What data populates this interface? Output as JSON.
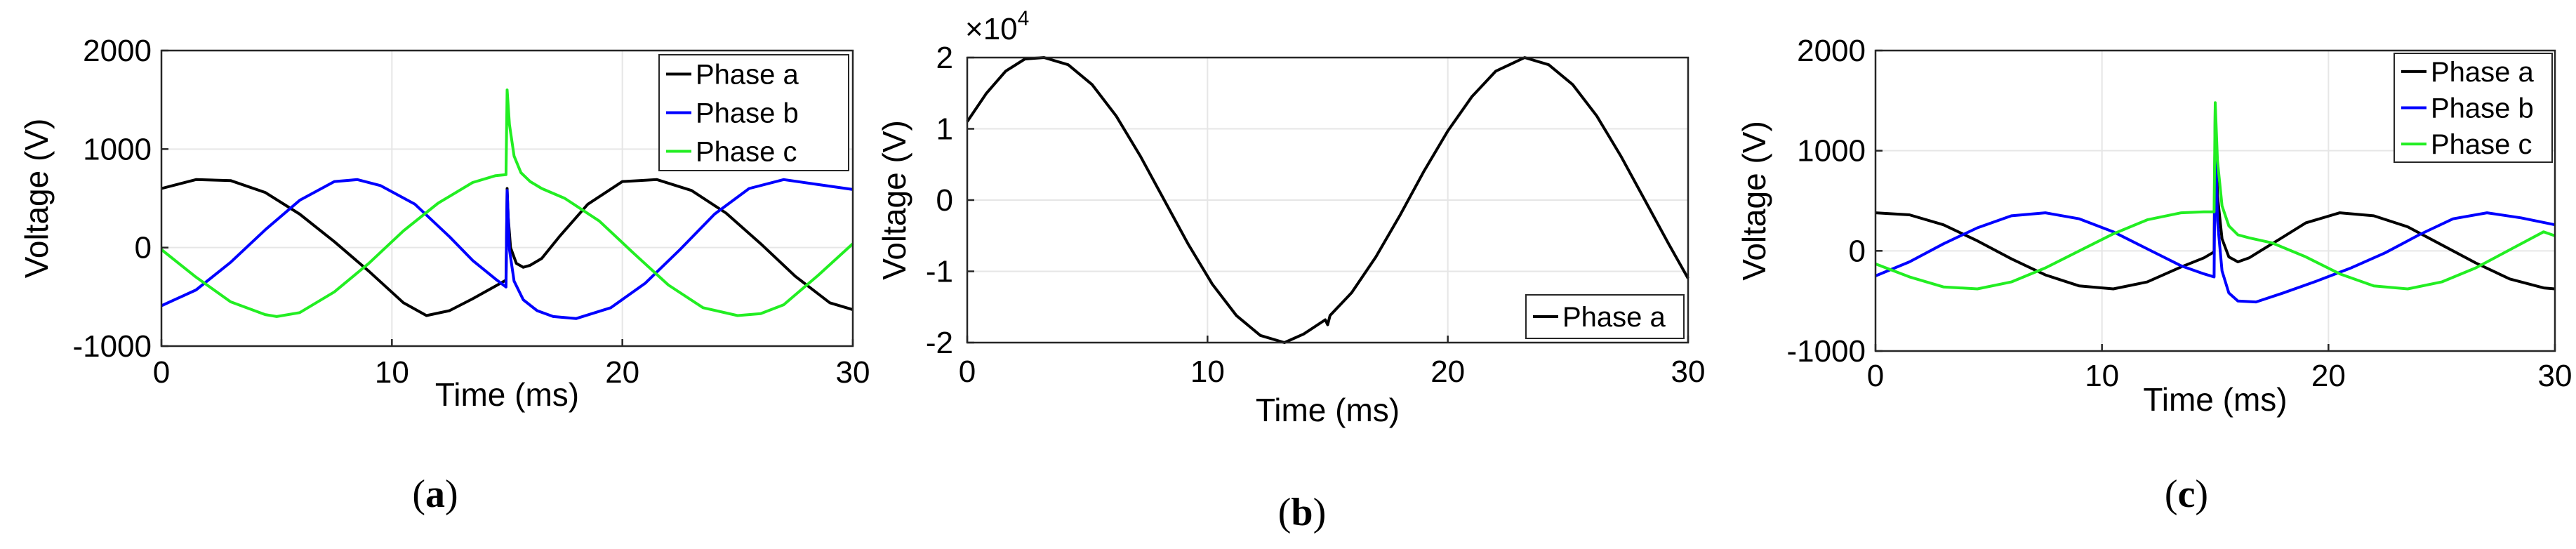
{
  "chart_data": [
    {
      "type": "line",
      "caption": {
        "open": "(",
        "letter": "a",
        "close": ")"
      },
      "xlabel": "Time (ms)",
      "ylabel": "Voltage (V)",
      "xlim": [
        0,
        30
      ],
      "ylim": [
        -1000,
        2000
      ],
      "xticks": [
        "0",
        "10",
        "20",
        "30"
      ],
      "yticks": [
        "-1000",
        "0",
        "1000",
        "2000"
      ],
      "grid": true,
      "legend_position": "top-right",
      "series": [
        {
          "name": "Phase a",
          "color": "#000000",
          "x": [
            0,
            1.5,
            3,
            4.5,
            6,
            7.5,
            9,
            10.5,
            11.5,
            12.5,
            13.5,
            14.5,
            14.95,
            15.0,
            15.05,
            15.15,
            15.4,
            15.7,
            16.0,
            16.5,
            17.3,
            18.5,
            20,
            21.5,
            23,
            24.5,
            26,
            27.5,
            29,
            30
          ],
          "y": [
            600,
            690,
            680,
            560,
            340,
            60,
            -240,
            -560,
            -690,
            -640,
            -520,
            -390,
            -330,
            600,
            300,
            0,
            -160,
            -200,
            -180,
            -110,
            120,
            440,
            670,
            690,
            580,
            350,
            40,
            -290,
            -560,
            -630
          ]
        },
        {
          "name": "Phase b",
          "color": "#0000ff",
          "x": [
            0,
            1.5,
            3,
            4.5,
            6,
            7.5,
            8.5,
            9.5,
            11,
            12.5,
            13.5,
            14.5,
            14.95,
            15.0,
            15.1,
            15.3,
            15.7,
            16.3,
            17.0,
            18.0,
            19.5,
            21,
            22.5,
            24,
            25.5,
            27,
            28.5,
            30
          ],
          "y": [
            -590,
            -430,
            -150,
            180,
            480,
            670,
            690,
            630,
            440,
            110,
            -130,
            -320,
            -400,
            580,
            -20,
            -340,
            -530,
            -640,
            -700,
            -720,
            -610,
            -360,
            -20,
            340,
            600,
            690,
            640,
            590
          ]
        },
        {
          "name": "Phase c",
          "color": "#22ee22",
          "x": [
            0,
            1.5,
            3,
            4.5,
            5,
            6,
            7.5,
            9,
            10.5,
            12,
            13.5,
            14.5,
            14.95,
            15.0,
            15.1,
            15.3,
            15.6,
            16.0,
            16.5,
            17.5,
            19,
            20.5,
            22,
            23.5,
            25,
            26,
            27,
            28.5,
            30
          ],
          "y": [
            -20,
            -300,
            -550,
            -680,
            -700,
            -660,
            -450,
            -160,
            170,
            450,
            660,
            730,
            740,
            1600,
            1250,
            930,
            760,
            670,
            600,
            500,
            270,
            -60,
            -380,
            -610,
            -690,
            -670,
            -580,
            -280,
            40
          ]
        }
      ]
    },
    {
      "type": "line",
      "caption": {
        "open": "(",
        "letter": "b",
        "close": ")"
      },
      "xlabel": "Time (ms)",
      "ylabel": "Voltage (V)",
      "ylabel_multiplier": {
        "base": "×10",
        "exponent": "4"
      },
      "xlim": [
        0,
        30
      ],
      "ylim": [
        -2,
        2
      ],
      "xticks": [
        "0",
        "10",
        "20",
        "30"
      ],
      "yticks": [
        "-2",
        "-1",
        "0",
        "1",
        "2"
      ],
      "grid": true,
      "legend_position": "bottom-right",
      "series": [
        {
          "name": "Phase a",
          "color": "#000000",
          "x": [
            0,
            0.8,
            1.6,
            2.4,
            3.2,
            4.2,
            5.2,
            6.2,
            7.2,
            8.2,
            9.2,
            10.2,
            11.2,
            12.2,
            13.2,
            14.0,
            14.9,
            15.0,
            15.1,
            16.0,
            17.0,
            18.0,
            19.0,
            20.0,
            21.0,
            22.0,
            23.2,
            24.2,
            25.2,
            26.2,
            27.2,
            28.2,
            29.2,
            30
          ],
          "y": [
            1.1,
            1.5,
            1.81,
            1.98,
            2.0,
            1.9,
            1.62,
            1.18,
            0.62,
            0.0,
            -0.62,
            -1.18,
            -1.62,
            -1.9,
            -2.0,
            -1.88,
            -1.68,
            -1.75,
            -1.62,
            -1.3,
            -0.8,
            -0.22,
            0.4,
            0.97,
            1.45,
            1.81,
            2.0,
            1.9,
            1.62,
            1.18,
            0.62,
            0.0,
            -0.62,
            -1.1
          ]
        }
      ]
    },
    {
      "type": "line",
      "caption": {
        "open": "(",
        "letter": "c",
        "close": ")"
      },
      "xlabel": "Time (ms)",
      "ylabel": "Voltage (V)",
      "xlim": [
        0,
        30
      ],
      "ylim": [
        -1000,
        2000
      ],
      "xticks": [
        "0",
        "10",
        "20",
        "30"
      ],
      "yticks": [
        "-1000",
        "0",
        "1000",
        "2000"
      ],
      "grid": true,
      "legend_position": "top-right",
      "series": [
        {
          "name": "Phase a",
          "color": "#000000",
          "x": [
            0,
            1.5,
            3,
            4.5,
            6,
            7.5,
            9,
            10.5,
            12,
            13.5,
            14.5,
            14.95,
            15.0,
            15.1,
            15.3,
            15.6,
            16.0,
            16.5,
            17.0,
            17.8,
            19,
            20.5,
            22,
            23.5,
            25,
            26.5,
            28,
            29.5,
            30
          ],
          "y": [
            380,
            360,
            260,
            100,
            -80,
            -240,
            -350,
            -380,
            -310,
            -160,
            -70,
            -10,
            1420,
            550,
            120,
            -60,
            -110,
            -70,
            0,
            110,
            280,
            380,
            350,
            240,
            60,
            -120,
            -280,
            -370,
            -380
          ]
        },
        {
          "name": "Phase b",
          "color": "#0000ff",
          "x": [
            0,
            1.5,
            3,
            4.5,
            6,
            7.5,
            9,
            10.5,
            12,
            13.5,
            14.5,
            14.95,
            15.0,
            15.1,
            15.3,
            15.6,
            16.0,
            16.8,
            18,
            19.5,
            21,
            22.5,
            24,
            25.5,
            27,
            28.5,
            30
          ],
          "y": [
            -250,
            -110,
            70,
            230,
            350,
            380,
            320,
            190,
            20,
            -150,
            -230,
            -260,
            1300,
            300,
            -200,
            -420,
            -500,
            -510,
            -420,
            -300,
            -170,
            -20,
            160,
            320,
            380,
            330,
            260
          ]
        },
        {
          "name": "Phase c",
          "color": "#22ee22",
          "x": [
            0,
            1.5,
            3,
            4.5,
            6,
            7.5,
            9,
            10.5,
            12,
            13.5,
            14.5,
            14.95,
            15.0,
            15.1,
            15.3,
            15.6,
            16.0,
            16.5,
            17.5,
            19,
            20.5,
            22,
            23.5,
            25,
            26.5,
            28,
            29.5,
            30
          ],
          "y": [
            -130,
            -260,
            -360,
            -380,
            -310,
            -170,
            0,
            170,
            310,
            380,
            390,
            390,
            1480,
            900,
            450,
            250,
            160,
            130,
            80,
            -60,
            -230,
            -350,
            -380,
            -310,
            -170,
            10,
            190,
            150
          ]
        }
      ]
    }
  ]
}
